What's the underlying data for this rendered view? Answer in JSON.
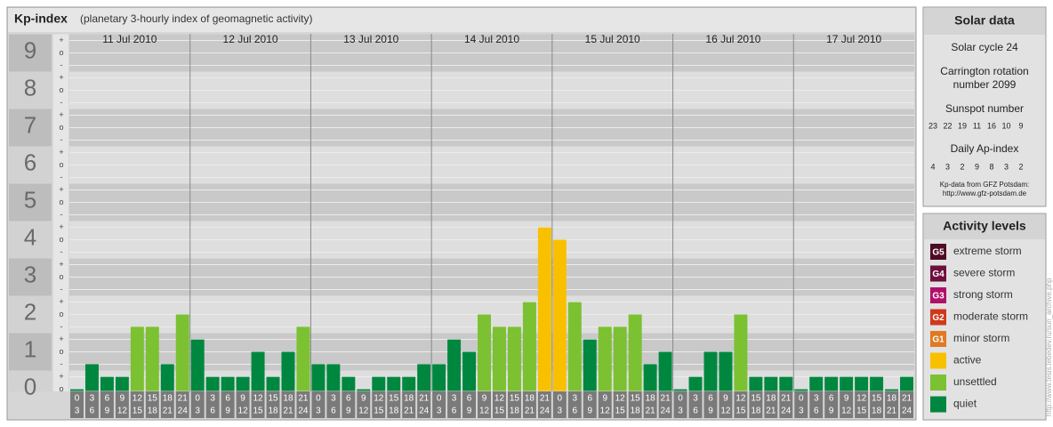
{
  "chart_data": {
    "type": "bar",
    "title": "Kp-index",
    "subtitle": "(planetary 3-hourly index of geomagnetic activity)",
    "ylim": [
      0,
      9
    ],
    "yticks": [
      0,
      1,
      2,
      3,
      4,
      5,
      6,
      7,
      8,
      9
    ],
    "minor_tick_labels": [
      "-",
      "o",
      "+"
    ],
    "hours": [
      {
        "from": "0",
        "to": "3"
      },
      {
        "from": "3",
        "to": "6"
      },
      {
        "from": "6",
        "to": "9"
      },
      {
        "from": "9",
        "to": "12"
      },
      {
        "from": "12",
        "to": "15"
      },
      {
        "from": "15",
        "to": "18"
      },
      {
        "from": "18",
        "to": "21"
      },
      {
        "from": "21",
        "to": "24"
      }
    ],
    "days": [
      {
        "date": "11 Jul 2010",
        "values": [
          0,
          0.67,
          0.33,
          0.33,
          1.67,
          1.67,
          0.67,
          2
        ],
        "colors": [
          "#00873f",
          "#00873f",
          "#00873f",
          "#00873f",
          "#7bc132",
          "#7bc132",
          "#00873f",
          "#7bc132"
        ]
      },
      {
        "date": "12 Jul 2010",
        "values": [
          1.33,
          0.33,
          0.33,
          0.33,
          1,
          0.33,
          1,
          1.67
        ],
        "colors": [
          "#00873f",
          "#00873f",
          "#00873f",
          "#00873f",
          "#00873f",
          "#00873f",
          "#00873f",
          "#7bc132"
        ]
      },
      {
        "date": "13 Jul 2010",
        "values": [
          0.67,
          0.67,
          0.33,
          0,
          0.33,
          0.33,
          0.33,
          0.67
        ],
        "colors": [
          "#00873f",
          "#00873f",
          "#00873f",
          "#00873f",
          "#00873f",
          "#00873f",
          "#00873f",
          "#00873f"
        ]
      },
      {
        "date": "14 Jul 2010",
        "values": [
          0.67,
          1.33,
          1,
          2,
          1.67,
          1.67,
          2.33,
          4.33
        ],
        "colors": [
          "#00873f",
          "#00873f",
          "#00873f",
          "#7bc132",
          "#7bc132",
          "#7bc132",
          "#7bc132",
          "#f9c000"
        ]
      },
      {
        "date": "15 Jul 2010",
        "values": [
          4,
          2.33,
          1.33,
          1.67,
          1.67,
          2,
          0.67,
          1
        ],
        "colors": [
          "#f9c000",
          "#7bc132",
          "#00873f",
          "#7bc132",
          "#7bc132",
          "#7bc132",
          "#00873f",
          "#00873f"
        ]
      },
      {
        "date": "16 Jul 2010",
        "values": [
          0,
          0.33,
          1,
          1,
          2,
          0.33,
          0.33,
          0.33
        ],
        "colors": [
          "#00873f",
          "#00873f",
          "#00873f",
          "#00873f",
          "#7bc132",
          "#00873f",
          "#00873f",
          "#00873f"
        ]
      },
      {
        "date": "17 Jul 2010",
        "values": [
          0,
          0.33,
          0.33,
          0.33,
          0.33,
          0.33,
          0,
          0.33
        ],
        "colors": [
          "#00873f",
          "#00873f",
          "#00873f",
          "#00873f",
          "#00873f",
          "#00873f",
          "#00873f",
          "#00873f"
        ]
      }
    ]
  },
  "solar_data": {
    "title": "Solar data",
    "cycle": "Solar cycle 24",
    "carrington": [
      "Carrington rotation",
      "number 2099"
    ],
    "sunspot_title": "Sunspot number",
    "sunspot": [
      23,
      22,
      19,
      11,
      16,
      10,
      9
    ],
    "ap_title": "Daily Ap-index",
    "ap": [
      4,
      3,
      2,
      9,
      8,
      3,
      2
    ],
    "source": "Kp-data from GFZ Potsdam:",
    "source_url": "http://www.gfz-potsdam.de"
  },
  "activity_levels": {
    "title": "Activity levels",
    "items": [
      {
        "code": "G5",
        "label": "extreme storm",
        "color": "#4f0a24"
      },
      {
        "code": "G4",
        "label": "severe storm",
        "color": "#6e0f3e"
      },
      {
        "code": "G3",
        "label": "strong storm",
        "color": "#b0106a"
      },
      {
        "code": "G2",
        "label": "moderate storm",
        "color": "#d0381c"
      },
      {
        "code": "G1",
        "label": "minor storm",
        "color": "#e07a22"
      },
      {
        "label": "active",
        "color": "#f9c000"
      },
      {
        "label": "unsettled",
        "color": "#7bc132"
      },
      {
        "label": "quiet",
        "color": "#00873f"
      }
    ]
  },
  "credit": "http://www.tesis.lebedev.ru/sun_archive.php"
}
